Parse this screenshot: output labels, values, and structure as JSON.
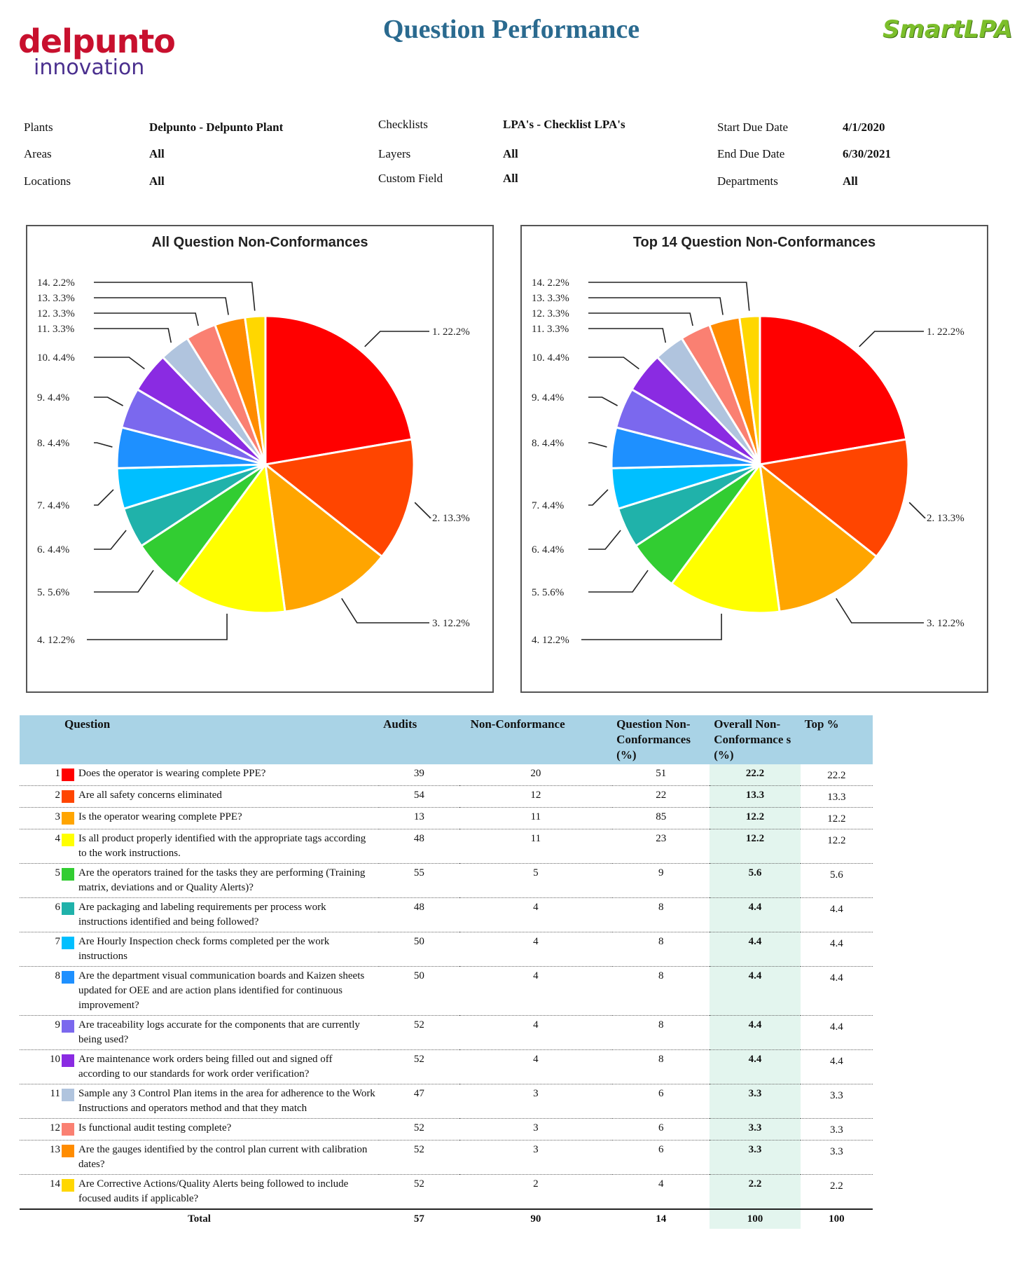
{
  "header": {
    "logo_left_line1": "delpunto",
    "logo_left_line2": "innovation",
    "title": "Question Performance",
    "logo_right": "SmartLPA"
  },
  "filters": {
    "plants_label": "Plants",
    "plants_value": "Delpunto - Delpunto Plant",
    "areas_label": "Areas",
    "areas_value": "All",
    "locations_label": "Locations",
    "locations_value": "All",
    "checklists_label": "Checklists",
    "checklists_value": "LPA's - Checklist LPA's",
    "layers_label": "Layers",
    "layers_value": "All",
    "custom_label": "Custom Field",
    "custom_value": "All",
    "start_label": "Start Due Date",
    "start_value": "4/1/2020",
    "end_label": "End Due Date",
    "end_value": "6/30/2021",
    "departments_label": "Departments",
    "departments_value": "All"
  },
  "chart_data": [
    {
      "type": "pie",
      "title": "All Question Non-Conformances",
      "labels": [
        "1. 22.2%",
        "2. 13.3%",
        "3. 12.2%",
        "4. 12.2%",
        "5. 5.6%",
        "6. 4.4%",
        "7. 4.4%",
        "8. 4.4%",
        "9. 4.4%",
        "10. 4.4%",
        "11. 3.3%",
        "12. 3.3%",
        "13. 3.3%",
        "14. 2.2%"
      ],
      "values": [
        22.2,
        13.3,
        12.2,
        12.2,
        5.6,
        4.4,
        4.4,
        4.4,
        4.4,
        4.4,
        3.3,
        3.3,
        3.3,
        2.2
      ],
      "colors": [
        "#ff0000",
        "#ff4500",
        "#ffa500",
        "#ffff00",
        "#32cd32",
        "#20b2aa",
        "#00bfff",
        "#1e90ff",
        "#7b68ee",
        "#8a2be2",
        "#b0c4de",
        "#fa8072",
        "#ff8c00",
        "#ffd700"
      ]
    },
    {
      "type": "pie",
      "title": "Top 14 Question Non-Conformances",
      "labels": [
        "1. 22.2%",
        "2. 13.3%",
        "3. 12.2%",
        "4. 12.2%",
        "5. 5.6%",
        "6. 4.4%",
        "7. 4.4%",
        "8. 4.4%",
        "9. 4.4%",
        "10. 4.4%",
        "11. 3.3%",
        "12. 3.3%",
        "13. 3.3%",
        "14. 2.2%"
      ],
      "values": [
        22.2,
        13.3,
        12.2,
        12.2,
        5.6,
        4.4,
        4.4,
        4.4,
        4.4,
        4.4,
        3.3,
        3.3,
        3.3,
        2.2
      ],
      "colors": [
        "#ff0000",
        "#ff4500",
        "#ffa500",
        "#ffff00",
        "#32cd32",
        "#20b2aa",
        "#00bfff",
        "#1e90ff",
        "#7b68ee",
        "#8a2be2",
        "#b0c4de",
        "#fa8072",
        "#ff8c00",
        "#ffd700"
      ]
    }
  ],
  "table": {
    "headers": {
      "question": "Question",
      "audits": "Audits",
      "nonconf": "Non-Conformance",
      "qnc": "Question Non-Conformances (%)",
      "onc": "Overall Non-Conformance s (%)",
      "top": "Top %"
    },
    "rows": [
      {
        "n": "1",
        "color": "#ff0000",
        "q": "Does the operator is wearing complete PPE?",
        "audits": "39",
        "nc": "20",
        "qnc": "51",
        "onc": "22.2",
        "top": "22.2"
      },
      {
        "n": "2",
        "color": "#ff4500",
        "q": "Are all safety concerns eliminated",
        "audits": "54",
        "nc": "12",
        "qnc": "22",
        "onc": "13.3",
        "top": "13.3"
      },
      {
        "n": "3",
        "color": "#ffa500",
        "q": "Is the operator wearing complete PPE?",
        "audits": "13",
        "nc": "11",
        "qnc": "85",
        "onc": "12.2",
        "top": "12.2"
      },
      {
        "n": "4",
        "color": "#ffff00",
        "q": "Is all product properly identified with the appropriate tags according to the work instructions.",
        "audits": "48",
        "nc": "11",
        "qnc": "23",
        "onc": "12.2",
        "top": "12.2"
      },
      {
        "n": "5",
        "color": "#32cd32",
        "q": "Are the operators trained for the tasks they are performing (Training matrix, deviations and or Quality Alerts)?",
        "audits": "55",
        "nc": "5",
        "qnc": "9",
        "onc": "5.6",
        "top": "5.6"
      },
      {
        "n": "6",
        "color": "#20b2aa",
        "q": "Are packaging and labeling requirements per process work instructions identified and being followed?",
        "audits": "48",
        "nc": "4",
        "qnc": "8",
        "onc": "4.4",
        "top": "4.4"
      },
      {
        "n": "7",
        "color": "#00bfff",
        "q": "Are Hourly Inspection check forms completed per the work instructions",
        "audits": "50",
        "nc": "4",
        "qnc": "8",
        "onc": "4.4",
        "top": "4.4"
      },
      {
        "n": "8",
        "color": "#1e90ff",
        "q": "Are the department visual communication boards and Kaizen sheets updated for OEE and are action plans identified for continuous improvement?",
        "audits": "50",
        "nc": "4",
        "qnc": "8",
        "onc": "4.4",
        "top": "4.4"
      },
      {
        "n": "9",
        "color": "#7b68ee",
        "q": "Are traceability logs accurate for the components that are currently being used?",
        "audits": "52",
        "nc": "4",
        "qnc": "8",
        "onc": "4.4",
        "top": "4.4"
      },
      {
        "n": "10",
        "color": "#8a2be2",
        "q": "Are maintenance work orders being filled out and signed off according to our standards for work order verification?",
        "audits": "52",
        "nc": "4",
        "qnc": "8",
        "onc": "4.4",
        "top": "4.4"
      },
      {
        "n": "11",
        "color": "#b0c4de",
        "q": "Sample any 3 Control Plan items in the area for adherence to the Work Instructions and operators method and that they match",
        "audits": "47",
        "nc": "3",
        "qnc": "6",
        "onc": "3.3",
        "top": "3.3"
      },
      {
        "n": "12",
        "color": "#fa8072",
        "q": "Is functional audit testing complete?",
        "audits": "52",
        "nc": "3",
        "qnc": "6",
        "onc": "3.3",
        "top": "3.3"
      },
      {
        "n": "13",
        "color": "#ff8c00",
        "q": "Are the gauges identified by the control plan current with calibration dates?",
        "audits": "52",
        "nc": "3",
        "qnc": "6",
        "onc": "3.3",
        "top": "3.3"
      },
      {
        "n": "14",
        "color": "#ffd700",
        "q": "Are Corrective Actions/Quality Alerts being followed to include focused audits if applicable?",
        "audits": "52",
        "nc": "2",
        "qnc": "4",
        "onc": "2.2",
        "top": "2.2"
      }
    ],
    "total": {
      "label": "Total",
      "audits": "57",
      "nc": "90",
      "qnc": "14",
      "onc": "100",
      "top": "100"
    }
  }
}
